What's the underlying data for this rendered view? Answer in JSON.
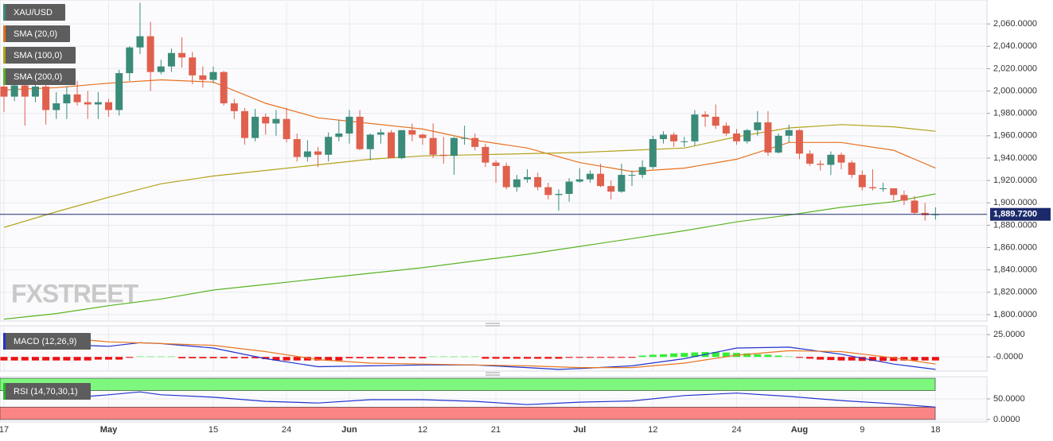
{
  "chart_data": [
    {
      "type": "candlestick",
      "title": "XAU/USD",
      "watermark": "FXSTREET",
      "categories": [
        "17",
        null,
        null,
        null,
        null,
        null,
        null,
        null,
        null,
        null,
        "May",
        null,
        null,
        null,
        null,
        null,
        null,
        null,
        null,
        null,
        "15",
        null,
        null,
        null,
        null,
        null,
        null,
        "24",
        null,
        null,
        null,
        null,
        null,
        "Jun",
        null,
        null,
        null,
        null,
        null,
        null,
        "12",
        null,
        null,
        null,
        null,
        null,
        null,
        "21",
        null,
        null,
        null,
        null,
        null,
        null,
        null,
        "Jul",
        null,
        null,
        null,
        null,
        null,
        null,
        "12",
        null,
        null,
        null,
        null,
        null,
        null,
        null,
        "24",
        null,
        null,
        null,
        null,
        null,
        "Aug",
        null,
        null,
        null,
        null,
        null,
        "9",
        null,
        null,
        null,
        null,
        null,
        null,
        "18"
      ],
      "ohlc": [
        [
          2004,
          2006,
          1981,
          1995
        ],
        [
          1995,
          2013,
          1991,
          2005
        ],
        [
          2005,
          2008,
          1969,
          1995
        ],
        [
          1995,
          2012,
          1990,
          2004
        ],
        [
          2004,
          2006,
          1970,
          1983
        ],
        [
          1983,
          1999,
          1975,
          1989
        ],
        [
          1989,
          2004,
          1975,
          1997
        ],
        [
          1997,
          2009,
          1987,
          1990
        ],
        [
          1990,
          2000,
          1975,
          1988
        ],
        [
          1988,
          1999,
          1975,
          1990
        ],
        [
          1990,
          1993,
          1977,
          1983
        ],
        [
          1983,
          2019,
          1978,
          2016
        ],
        [
          2016,
          2040,
          2009,
          2039
        ],
        [
          2039,
          2079,
          2033,
          2049
        ],
        [
          2049,
          2062,
          2000,
          2017
        ],
        [
          2017,
          2028,
          2015,
          2022
        ],
        [
          2022,
          2038,
          2017,
          2034
        ],
        [
          2034,
          2048,
          2021,
          2030
        ],
        [
          2030,
          2035,
          2006,
          2014
        ],
        [
          2014,
          2022,
          2003,
          2010
        ],
        [
          2010,
          2022,
          2007,
          2017
        ],
        [
          2017,
          2018,
          1987,
          1989
        ],
        [
          1989,
          1993,
          1975,
          1982
        ],
        [
          1982,
          1985,
          1952,
          1958
        ],
        [
          1958,
          1984,
          1955,
          1977
        ],
        [
          1977,
          1980,
          1961,
          1971
        ],
        [
          1971,
          1983,
          1960,
          1975
        ],
        [
          1975,
          1985,
          1954,
          1957
        ],
        [
          1957,
          1962,
          1937,
          1941
        ],
        [
          1941,
          1956,
          1937,
          1946
        ],
        [
          1946,
          1950,
          1932,
          1943
        ],
        [
          1943,
          1963,
          1937,
          1959
        ],
        [
          1959,
          1974,
          1955,
          1962
        ],
        [
          1962,
          1983,
          1953,
          1977
        ],
        [
          1977,
          1983,
          1947,
          1948
        ],
        [
          1948,
          1962,
          1938,
          1961
        ],
        [
          1961,
          1966,
          1953,
          1963
        ],
        [
          1963,
          1965,
          1940,
          1940
        ],
        [
          1940,
          1965,
          1939,
          1965
        ],
        [
          1965,
          1971,
          1955,
          1961
        ],
        [
          1961,
          1962,
          1952,
          1958
        ],
        [
          1958,
          1971,
          1940,
          1943
        ],
        [
          1943,
          1959,
          1935,
          1942
        ],
        [
          1942,
          1959,
          1925,
          1958
        ],
        [
          1958,
          1969,
          1952,
          1958
        ],
        [
          1958,
          1962,
          1947,
          1950
        ],
        [
          1950,
          1953,
          1932,
          1936
        ],
        [
          1936,
          1938,
          1918,
          1933
        ],
        [
          1933,
          1936,
          1912,
          1914
        ],
        [
          1914,
          1925,
          1910,
          1921
        ],
        [
          1921,
          1930,
          1918,
          1923
        ],
        [
          1923,
          1927,
          1911,
          1914
        ],
        [
          1914,
          1918,
          1903,
          1907
        ],
        [
          1907,
          1912,
          1893,
          1908
        ],
        [
          1908,
          1922,
          1901,
          1919
        ],
        [
          1919,
          1931,
          1918,
          1921
        ],
        [
          1921,
          1929,
          1918,
          1926
        ],
        [
          1926,
          1935,
          1914,
          1915
        ],
        [
          1915,
          1920,
          1903,
          1910
        ],
        [
          1910,
          1935,
          1909,
          1925
        ],
        [
          1925,
          1929,
          1915,
          1925
        ],
        [
          1925,
          1938,
          1922,
          1932
        ],
        [
          1932,
          1960,
          1930,
          1957
        ],
        [
          1957,
          1964,
          1953,
          1961
        ],
        [
          1961,
          1963,
          1950,
          1955
        ],
        [
          1955,
          1959,
          1950,
          1955
        ],
        [
          1955,
          1983,
          1951,
          1979
        ],
        [
          1979,
          1982,
          1968,
          1977
        ],
        [
          1977,
          1988,
          1966,
          1969
        ],
        [
          1969,
          1972,
          1960,
          1962
        ],
        [
          1962,
          1966,
          1952,
          1955
        ],
        [
          1955,
          1966,
          1953,
          1965
        ],
        [
          1965,
          1982,
          1960,
          1972
        ],
        [
          1972,
          1982,
          1942,
          1945
        ],
        [
          1945,
          1962,
          1944,
          1960
        ],
        [
          1960,
          1970,
          1954,
          1965
        ],
        [
          1965,
          1966,
          1939,
          1944
        ],
        [
          1944,
          1947,
          1933,
          1935
        ],
        [
          1935,
          1938,
          1929,
          1934
        ],
        [
          1934,
          1946,
          1925,
          1943
        ],
        [
          1943,
          1945,
          1930,
          1936
        ],
        [
          1936,
          1938,
          1922,
          1925
        ],
        [
          1925,
          1929,
          1911,
          1914
        ],
        [
          1914,
          1930,
          1911,
          1913
        ],
        [
          1913,
          1918,
          1910,
          1913
        ],
        [
          1913,
          1913,
          1902,
          1907
        ],
        [
          1907,
          1911,
          1898,
          1902
        ],
        [
          1902,
          1906,
          1890,
          1891
        ],
        [
          1891,
          1900,
          1884,
          1889
        ],
        [
          1889,
          1896,
          1885,
          1889.72
        ]
      ],
      "up_color": "#3b8b79",
      "down_color": "#e0604d",
      "color": "#3b8b79",
      "last_price": {
        "value": 1889.72,
        "label": "1,889.7200"
      },
      "last_price_color": "#1c2a6b",
      "series": [
        {
          "name": "SMA (20,0)",
          "color": "#e8701e",
          "x": [
            0,
            5,
            10,
            15,
            20,
            25,
            30,
            35,
            40,
            45,
            50,
            55,
            60,
            65,
            70,
            75,
            80,
            85,
            89
          ],
          "values": [
            2001,
            2003,
            2007,
            2010,
            2008,
            1989,
            1976,
            1971,
            1966,
            1956,
            1949,
            1936,
            1928,
            1931,
            1939,
            1954,
            1954,
            1947,
            1931
          ]
        },
        {
          "name": "SMA (100,0)",
          "color": "#b3a11a",
          "x": [
            0,
            5,
            10,
            15,
            20,
            25,
            30,
            35,
            40,
            45,
            50,
            55,
            60,
            65,
            70,
            75,
            80,
            85,
            89
          ],
          "values": [
            1878,
            1892,
            1905,
            1917,
            1924,
            1929,
            1934,
            1939,
            1942,
            1943,
            1944,
            1945,
            1947,
            1949,
            1959,
            1967,
            1970,
            1968,
            1964
          ]
        },
        {
          "name": "SMA (200,0)",
          "color": "#5bb324",
          "x": [
            0,
            5,
            10,
            15,
            20,
            25,
            30,
            35,
            40,
            45,
            50,
            55,
            60,
            65,
            70,
            75,
            80,
            85,
            89
          ],
          "values": [
            1796,
            1801,
            1808,
            1814,
            1822,
            1827,
            1832,
            1837,
            1842,
            1848,
            1854,
            1861,
            1868,
            1875,
            1883,
            1889,
            1896,
            1901,
            1908
          ]
        }
      ],
      "ylim": [
        1795,
        2080
      ],
      "yticks": [
        {
          "value": 1800,
          "label": "1,800.0000"
        },
        {
          "value": 1820,
          "label": "1,820.0000"
        },
        {
          "value": 1840,
          "label": "1,840.0000"
        },
        {
          "value": 1860,
          "label": "1,860.0000"
        },
        {
          "value": 1880,
          "label": "1,880.0000"
        },
        {
          "value": 1900,
          "label": "1,900.0000"
        },
        {
          "value": 1920,
          "label": "1,920.0000"
        },
        {
          "value": 1940,
          "label": "1,940.0000"
        },
        {
          "value": 1960,
          "label": "1,960.0000"
        },
        {
          "value": 1980,
          "label": "1,980.0000"
        },
        {
          "value": 2000,
          "label": "2,000.0000"
        },
        {
          "value": 2020,
          "label": "2,020.0000"
        },
        {
          "value": 2040,
          "label": "2,040.0000"
        },
        {
          "value": 2060,
          "label": "2,060.0000"
        }
      ],
      "grid": true
    },
    {
      "type": "macd",
      "title": "MACD (12,26,9)",
      "color": "#2233cc",
      "histogram": [
        -4,
        -4,
        -4,
        -4,
        -4,
        -4,
        -4,
        -4,
        -4,
        -3,
        -3,
        -3,
        -1,
        0.5,
        0.5,
        0.5,
        0.5,
        -1.5,
        -1.5,
        -1.5,
        -1.5,
        -1.5,
        -1.5,
        -1.5,
        -1.5,
        -2.5,
        -4,
        -4,
        -4,
        -4,
        -4,
        -4,
        -4,
        -1.5,
        -1.5,
        -1.5,
        -1.5,
        -1.5,
        -1.5,
        -1.5,
        -1.5,
        0.5,
        0.5,
        0.5,
        0.5,
        0.5,
        -2,
        -2,
        -2,
        -2,
        -2,
        -2,
        -2,
        -2,
        -1,
        -1,
        -1,
        -1,
        -1,
        -1,
        -1,
        1.5,
        2.5,
        3,
        4,
        4.5,
        5,
        5.5,
        5.5,
        5,
        4.5,
        4,
        3,
        2.5,
        1.5,
        0.5,
        -1,
        -2,
        -3,
        -3.5,
        -4,
        -4,
        -4.5,
        -4.5,
        -4.5,
        -4.5,
        -4,
        -4,
        -4,
        -4
      ],
      "pos_color": "#33ee33",
      "neg_color": "#ee1111",
      "series": [
        {
          "color": "#2233cc",
          "x": [
            0,
            5,
            10,
            13,
            15,
            20,
            25,
            30,
            35,
            40,
            45,
            50,
            53,
            55,
            60,
            65,
            70,
            75,
            80,
            85,
            89
          ],
          "values": [
            21,
            14,
            12,
            16,
            15,
            10,
            -2,
            -11,
            -10,
            -9,
            -9,
            -12,
            -14,
            -13,
            -10,
            -2,
            10,
            11,
            3,
            -8,
            -14
          ]
        },
        {
          "color": "#e8761f",
          "x": [
            0,
            5,
            10,
            15,
            20,
            25,
            30,
            35,
            40,
            45,
            50,
            55,
            60,
            65,
            70,
            75,
            80,
            85,
            89
          ],
          "values": [
            25,
            22,
            17,
            15,
            13,
            6,
            -3,
            -7,
            -8,
            -9,
            -10,
            -12,
            -12,
            -7,
            2,
            7,
            6,
            -1,
            -8
          ]
        }
      ],
      "ylim": [
        -15,
        35
      ],
      "yticks": [
        {
          "value": 25,
          "label": "25.0000"
        },
        {
          "value": 0,
          "label": "-0.0000"
        }
      ],
      "grid": true
    },
    {
      "type": "line",
      "title": "RSI (14,70,30,1)",
      "color": "#22bb22",
      "bands": [
        {
          "from": 70,
          "to": 100,
          "color": "#7ef77e"
        },
        {
          "from": 0,
          "to": 30,
          "color": "#fb8585"
        }
      ],
      "series": [
        {
          "color": "#2233cc",
          "x": [
            0,
            5,
            10,
            13,
            15,
            20,
            25,
            30,
            35,
            40,
            45,
            50,
            55,
            60,
            65,
            70,
            75,
            80,
            85,
            89
          ],
          "values": [
            52,
            50,
            60,
            67,
            60,
            54,
            44,
            40,
            48,
            48,
            44,
            36,
            42,
            45,
            58,
            64,
            56,
            46,
            38,
            30
          ]
        }
      ],
      "ylim": [
        -4,
        102
      ],
      "yticks": [
        {
          "value": 50,
          "label": "50.0000"
        },
        {
          "value": 0,
          "label": "0.0000"
        }
      ],
      "grid": true
    }
  ]
}
